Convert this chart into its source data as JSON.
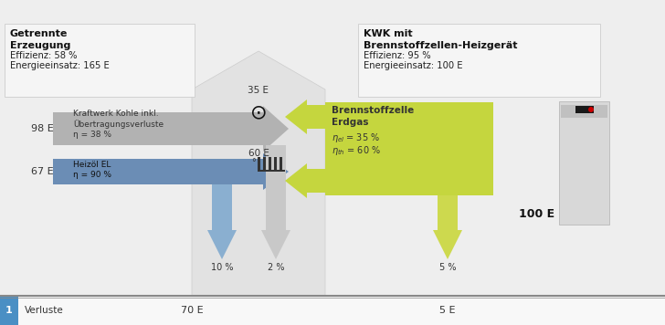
{
  "bg_color": "#eeeeee",
  "house_color": "#e0e0e0",
  "house_edge": "#cccccc",
  "left_box_bg": "#f5f5f5",
  "left_box_edge": "#cccccc",
  "right_box_bg": "#f5f5f5",
  "right_box_edge": "#cccccc",
  "gray_arrow": "#b2b2b2",
  "gray_down": "#c8c8c8",
  "blue_arrow": "#6b8db5",
  "blue_down": "#8aafd0",
  "green_arrow": "#c5d63e",
  "green_down": "#cdd94e",
  "footer_bg": "#ffffff",
  "footer_line": "#888888",
  "footer_blue": "#4a8fc4",
  "left_title": "Getrennte\nErzeugung",
  "left_sub1": "Effizienz: 58 %",
  "left_sub2": "Energieeinsatz: 165 E",
  "right_title": "KWK mit\nBrennstoffzellen-Heizgerät",
  "right_sub1": "Effizienz: 95 %",
  "right_sub2": "Energieeinsatz: 100 E",
  "gray_text1": "Kraftwerk Kohle inkl.",
  "gray_text2": "Übertragungsverluste",
  "gray_text3": "η = 38 %",
  "blue_text1": "Heizöl EL",
  "blue_text2": "η = 90 %",
  "green_bold1": "Brennstoffzelle",
  "green_bold2": "Erdgas",
  "green_sub1": "ηₑₗ = 35 %",
  "green_sub2": "ηₜₕ = 60 %",
  "lbl_98E": "98 E",
  "lbl_67E": "67 E",
  "lbl_35E": "35 E",
  "lbl_60E": "60 E",
  "lbl_100E": "100 E",
  "lbl_10pct": "10 %",
  "lbl_2pct": "2 %",
  "lbl_5pct": "5 %",
  "verluste": "Verluste",
  "verluste_70E": "70 E",
  "verluste_5E": "5 E",
  "footer_num": "1"
}
